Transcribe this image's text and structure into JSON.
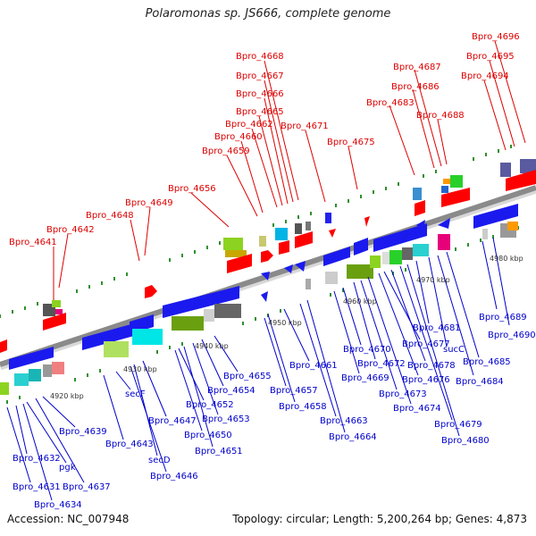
{
  "header": {
    "title": "Polaromonas sp. JS666, complete genome"
  },
  "footer": {
    "accession": "Accession: NC_007948",
    "summary": "Topology: circular; Length: 5,200,264 bp; Genes: 4,873"
  },
  "ticks": [
    "4920 kbp",
    "4930 kbp",
    "4940 kbp",
    "4950 kbp",
    "4960 kbp",
    "4970 kbp",
    "4980 kbp"
  ],
  "labels_above": [
    "Bpro_4641",
    "Bpro_4642",
    "Bpro_4648",
    "Bpro_4649",
    "Bpro_4656",
    "Bpro_4659",
    "Bpro_4660",
    "Bpro_4662",
    "Bpro_4665",
    "Bpro_4666",
    "Bpro_4667",
    "Bpro_4668",
    "Bpro_4671",
    "Bpro_4675",
    "Bpro_4683",
    "Bpro_4686",
    "Bpro_4687",
    "Bpro_4688",
    "Bpro_4694",
    "Bpro_4695",
    "Bpro_4696"
  ],
  "labels_below": [
    "Bpro_4632",
    "pgk",
    "Bpro_4631",
    "Bpro_4637",
    "Bpro_4634",
    "Bpro_4639",
    "Bpro_4643",
    "secF",
    "Bpro_4647",
    "secD",
    "Bpro_4646",
    "Bpro_4652",
    "Bpro_4650",
    "Bpro_4651",
    "Bpro_4653",
    "Bpro_4654",
    "Bpro_4655",
    "Bpro_4657",
    "Bpro_4658",
    "Bpro_4661",
    "Bpro_4663",
    "Bpro_4664",
    "Bpro_4669",
    "Bpro_4670",
    "Bpro_4672",
    "Bpro_4673",
    "Bpro_4674",
    "Bpro_4676",
    "Bpro_4677",
    "Bpro_4678",
    "Bpro_4679",
    "Bpro_4680",
    "Bpro_4681",
    "sucC",
    "Bpro_4684",
    "Bpro_4685",
    "Bpro_4689",
    "Bpro_4690"
  ],
  "colors": {
    "above": "#dd0000",
    "below": "#0000cc",
    "backbone": "#8a8a8a",
    "tick_green": "#2f8f2f"
  }
}
